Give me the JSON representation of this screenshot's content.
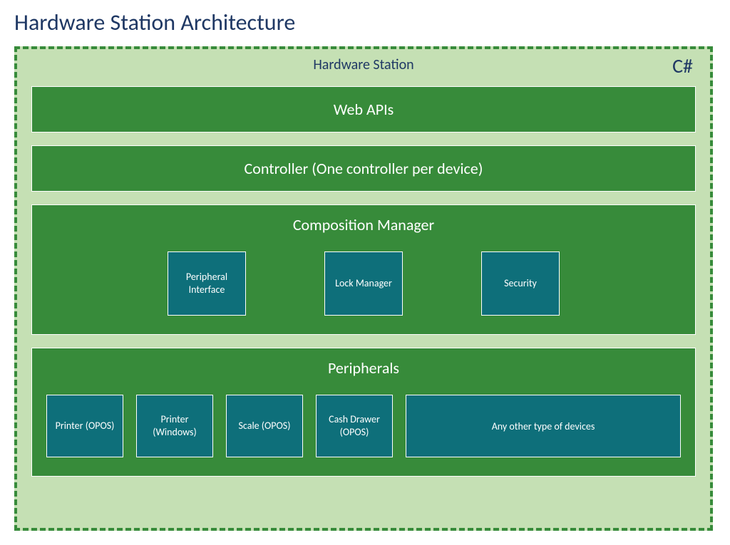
{
  "title": "Hardware Station Architecture",
  "container": {
    "label": "Hardware Station",
    "lang_label": "C#",
    "background_color": "#c5e0b4",
    "border_color": "#378b3a",
    "border_style": "dashed",
    "label_color": "#1f3864"
  },
  "bars": {
    "web_apis": "Web APIs",
    "controller": "Controller (One controller per device)"
  },
  "composition": {
    "title": "Composition Manager",
    "items": [
      {
        "label": "Peripheral Interface"
      },
      {
        "label": "Lock Manager"
      },
      {
        "label": "Security"
      }
    ]
  },
  "peripherals": {
    "title": "Peripherals",
    "items": [
      {
        "label": "Printer (OPOS)"
      },
      {
        "label": "Printer (Windows)"
      },
      {
        "label": "Scale (OPOS)"
      },
      {
        "label": "Cash Drawer (OPOS)"
      }
    ],
    "other": "Any other type of devices"
  },
  "colors": {
    "title_color": "#1f3864",
    "section_bg": "#378b3a",
    "section_text": "#ffffff",
    "box_bg": "#0e6f7a",
    "box_border": "#ffffff",
    "box_text": "#ffffff"
  },
  "typography": {
    "title_fontsize": 32,
    "section_title_fontsize": 22,
    "box_fontsize": 14,
    "font_family": "Segoe UI / Calibri"
  }
}
